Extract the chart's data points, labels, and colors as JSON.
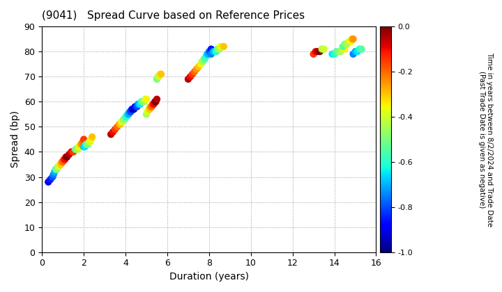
{
  "title": "(9041)   Spread Curve based on Reference Prices",
  "xlabel": "Duration (years)",
  "ylabel": "Spread (bp)",
  "colorbar_label_line1": "Time in years between 8/2/2024 and Trade Date",
  "colorbar_label_line2": "(Past Trade Date is given as negative)",
  "xlim": [
    0,
    16
  ],
  "ylim": [
    0,
    90
  ],
  "xticks": [
    0,
    2,
    4,
    6,
    8,
    10,
    12,
    14,
    16
  ],
  "yticks": [
    0,
    10,
    20,
    30,
    40,
    50,
    60,
    70,
    80,
    90
  ],
  "cmap": "jet",
  "vmin": -1.0,
  "vmax": 0.0,
  "dot_size": 55,
  "background_color": "#ffffff",
  "grid_color": "#999999",
  "clusters": [
    {
      "x_vals": [
        0.3,
        0.4,
        0.5,
        0.55,
        0.6,
        0.65,
        0.7,
        0.75,
        0.8,
        0.85,
        0.9,
        0.95,
        1.0,
        1.05,
        1.1,
        1.15,
        1.2,
        1.3,
        1.4,
        1.5,
        1.6,
        1.65,
        1.7,
        1.75,
        1.8,
        1.85,
        1.9,
        1.95,
        2.0
      ],
      "y_vals": [
        28,
        29,
        30,
        31,
        32,
        33,
        33,
        34,
        34,
        35,
        35,
        36,
        36,
        37,
        37,
        38,
        38,
        39,
        40,
        40,
        41,
        41,
        41,
        42,
        42,
        43,
        43,
        44,
        45
      ],
      "c_vals": [
        -0.9,
        -0.85,
        -0.8,
        -0.75,
        -0.7,
        -0.6,
        -0.5,
        -0.45,
        -0.4,
        -0.35,
        -0.3,
        -0.25,
        -0.2,
        -0.15,
        -0.1,
        -0.05,
        0.0,
        -0.05,
        -0.1,
        -0.15,
        -0.55,
        -0.5,
        -0.45,
        -0.4,
        -0.35,
        -0.3,
        -0.25,
        -0.2,
        -0.15
      ]
    },
    {
      "x_vals": [
        2.0,
        2.05,
        2.1,
        2.15,
        2.2,
        2.25,
        2.3,
        2.35,
        2.4
      ],
      "y_vals": [
        42,
        42,
        43,
        43,
        43,
        44,
        44,
        45,
        46
      ],
      "c_vals": [
        -0.7,
        -0.65,
        -0.6,
        -0.55,
        -0.5,
        -0.45,
        -0.4,
        -0.35,
        -0.3
      ]
    },
    {
      "x_vals": [
        3.3,
        3.4,
        3.5,
        3.6,
        3.7,
        3.75,
        3.8,
        3.85,
        3.9,
        3.95,
        4.0,
        4.05,
        4.1,
        4.15,
        4.2,
        4.25,
        4.3,
        4.35,
        4.4,
        4.45,
        4.5,
        4.55,
        4.6,
        4.65,
        4.7,
        4.75,
        4.8,
        4.85,
        4.9,
        4.95,
        5.0
      ],
      "y_vals": [
        47,
        48,
        49,
        50,
        51,
        51,
        52,
        52,
        53,
        53,
        54,
        54,
        55,
        55,
        56,
        56,
        57,
        57,
        57,
        58,
        58,
        58,
        59,
        59,
        59,
        60,
        60,
        60,
        60,
        61,
        61
      ],
      "c_vals": [
        -0.05,
        -0.1,
        -0.15,
        -0.2,
        -0.25,
        -0.3,
        -0.35,
        -0.4,
        -0.45,
        -0.5,
        -0.55,
        -0.6,
        -0.65,
        -0.7,
        -0.75,
        -0.8,
        -0.85,
        -0.9,
        -0.95,
        -0.9,
        -0.85,
        -0.8,
        -0.75,
        -0.7,
        -0.65,
        -0.6,
        -0.55,
        -0.5,
        -0.45,
        -0.4,
        -0.35
      ]
    },
    {
      "x_vals": [
        5.0,
        5.05,
        5.1,
        5.15,
        5.2,
        5.25,
        5.3,
        5.35,
        5.4,
        5.45,
        5.5
      ],
      "y_vals": [
        55,
        56,
        57,
        57,
        58,
        58,
        59,
        59,
        60,
        60,
        61
      ],
      "c_vals": [
        -0.45,
        -0.4,
        -0.35,
        -0.3,
        -0.25,
        -0.2,
        -0.15,
        -0.1,
        -0.05,
        0.0,
        -0.05
      ]
    },
    {
      "x_vals": [
        5.5,
        5.55,
        5.6,
        5.65,
        5.7
      ],
      "y_vals": [
        69,
        70,
        70,
        71,
        71
      ],
      "c_vals": [
        -0.5,
        -0.45,
        -0.4,
        -0.35,
        -0.3
      ]
    },
    {
      "x_vals": [
        7.0,
        7.1,
        7.2,
        7.3,
        7.4,
        7.5,
        7.6,
        7.65,
        7.7,
        7.75,
        7.8,
        7.85,
        7.9,
        7.95,
        8.0,
        8.05,
        8.1
      ],
      "y_vals": [
        69,
        70,
        71,
        72,
        73,
        74,
        75,
        76,
        76,
        77,
        77,
        78,
        79,
        79,
        80,
        80,
        81
      ],
      "c_vals": [
        -0.05,
        -0.1,
        -0.15,
        -0.2,
        -0.25,
        -0.3,
        -0.35,
        -0.4,
        -0.45,
        -0.5,
        -0.55,
        -0.6,
        -0.65,
        -0.7,
        -0.75,
        -0.8,
        -0.85
      ]
    },
    {
      "x_vals": [
        8.1,
        8.2,
        8.3,
        8.35,
        8.4,
        8.45,
        8.5,
        8.55,
        8.6,
        8.7
      ],
      "y_vals": [
        79,
        80,
        80,
        80,
        81,
        81,
        81,
        82,
        82,
        82
      ],
      "c_vals": [
        -0.75,
        -0.7,
        -0.65,
        -0.6,
        -0.55,
        -0.5,
        -0.45,
        -0.4,
        -0.35,
        -0.3
      ]
    },
    {
      "x_vals": [
        13.0,
        13.1,
        13.2,
        13.3,
        13.4,
        13.5
      ],
      "y_vals": [
        79,
        80,
        80,
        80,
        81,
        81
      ],
      "c_vals": [
        -0.15,
        -0.1,
        -0.05,
        0.0,
        -0.45,
        -0.4
      ]
    },
    {
      "x_vals": [
        13.9,
        14.0,
        14.1,
        14.2,
        14.3,
        14.4,
        14.5
      ],
      "y_vals": [
        79,
        79,
        80,
        80,
        80,
        81,
        81
      ],
      "c_vals": [
        -0.65,
        -0.6,
        -0.55,
        -0.5,
        -0.45,
        -0.4,
        -0.35
      ]
    },
    {
      "x_vals": [
        14.4,
        14.5,
        14.6,
        14.7,
        14.8,
        14.85,
        14.9
      ],
      "y_vals": [
        82,
        83,
        83,
        84,
        84,
        85,
        85
      ],
      "c_vals": [
        -0.55,
        -0.5,
        -0.45,
        -0.4,
        -0.35,
        -0.3,
        -0.25
      ]
    },
    {
      "x_vals": [
        14.9,
        15.0,
        15.1,
        15.2,
        15.3
      ],
      "y_vals": [
        79,
        80,
        80,
        81,
        81
      ],
      "c_vals": [
        -0.75,
        -0.7,
        -0.65,
        -0.6,
        -0.55
      ]
    }
  ]
}
